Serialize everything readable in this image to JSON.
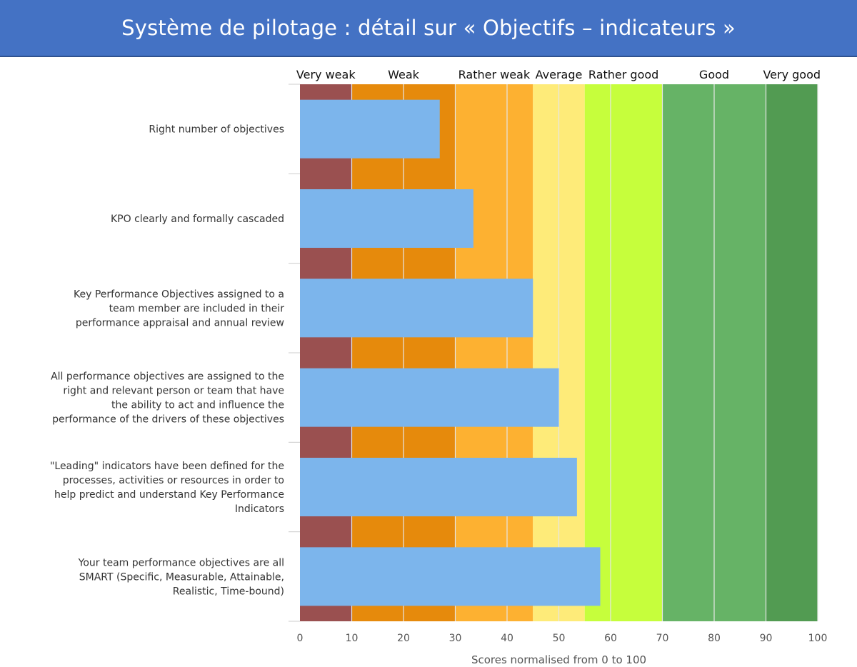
{
  "title": "Système de pilotage : détail sur « Objectifs – indicateurs »",
  "colors": {
    "banner": "#4472c4",
    "bar": "#7cb5ec"
  },
  "chart_data": {
    "type": "bar",
    "orientation": "horizontal",
    "categories": [
      "Right number of objectives",
      "KPO clearly and formally cascaded",
      "Key Performance Objectives assigned to a team member are included in their performance appraisal and annual review",
      "All performance objectives are assigned to the right and relevant person or team that have the ability to act and influence the performance of the drivers of these objectives",
      "\"Leading\" indicators have been defined for the processes, activities or resources in order to help predict and understand Key Performance Indicators",
      "Your team performance objectives are all SMART (Specific, Measurable, Attainable, Realistic, Time-bound)"
    ],
    "category_lines": [
      [
        "Right number of objectives"
      ],
      [
        "KPO clearly and formally cascaded"
      ],
      [
        "Key Performance Objectives assigned to a",
        "team member are included in their",
        "performance appraisal and annual review"
      ],
      [
        "All performance objectives are assigned to the",
        "right and relevant person or team that have",
        "the ability to act and influence the",
        "performance of the drivers of these objectives"
      ],
      [
        "\"Leading\" indicators have been defined for the",
        "processes, activities or resources in order to",
        "help predict and understand Key Performance",
        "Indicators"
      ],
      [
        "Your team performance objectives are all",
        "SMART (Specific, Measurable, Attainable,",
        "Realistic, Time-bound)"
      ]
    ],
    "values": [
      27,
      33.5,
      45,
      50,
      53.5,
      58
    ],
    "xlim": [
      0,
      100
    ],
    "xticks": [
      0,
      10,
      20,
      30,
      40,
      50,
      60,
      70,
      80,
      90,
      100
    ],
    "xlabel": "Scores normalised from 0 to 100",
    "ylabel": "",
    "grid": true,
    "bands": [
      {
        "label": "Very weak",
        "from": 0,
        "to": 10,
        "color": "#9a5050"
      },
      {
        "label": "Weak",
        "from": 10,
        "to": 30,
        "color": "#e68a0c"
      },
      {
        "label": "Rather weak",
        "from": 30,
        "to": 45,
        "color": "#fdb131"
      },
      {
        "label": "Average",
        "from": 45,
        "to": 55,
        "color": "#feeb79"
      },
      {
        "label": "Rather good",
        "from": 55,
        "to": 70,
        "color": "#c6fe3c"
      },
      {
        "label": "Good",
        "from": 70,
        "to": 90,
        "color": "#66b366"
      },
      {
        "label": "Very good",
        "from": 90,
        "to": 100,
        "color": "#529b52"
      }
    ]
  }
}
